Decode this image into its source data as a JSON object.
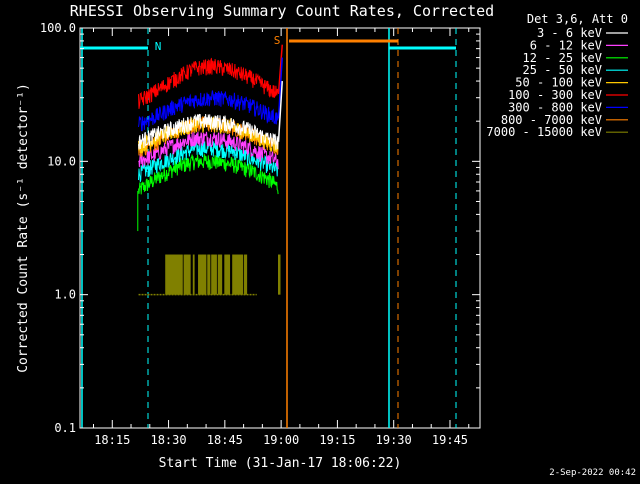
{
  "chart_data": {
    "type": "line",
    "title": "RHESSI Observing Summary Count Rates, Corrected",
    "xlabel": "Start Time (31-Jan-17 18:06:22)",
    "ylabel": "Corrected Count Rate (s⁻¹ detector⁻¹)",
    "yscale": "log",
    "ylim": [
      0.1,
      100.0
    ],
    "xlim_minutes_from_1800": [
      6.4,
      47.0
    ],
    "x_ticks": [
      "18:15",
      "18:30",
      "18:45",
      "19:00",
      "19:15",
      "19:30",
      "19:45"
    ],
    "x_tick_minutes": [
      15,
      30,
      45,
      60,
      75,
      90,
      105
    ],
    "y_ticks": [
      "0.1",
      "1.0",
      "10.0",
      "100.0"
    ],
    "y_tick_values": [
      0.1,
      1.0,
      10.0,
      100.0
    ],
    "legend_title": "Det 3,6, Att 0",
    "legend_placement": "top-right outside plot",
    "series": [
      {
        "name": "3 - 6 keV",
        "color": "#ffffff",
        "x_minutes": [
          22,
          27,
          32,
          37,
          42,
          47,
          52,
          56,
          59
        ],
        "values": [
          14,
          16,
          18,
          20,
          20,
          19,
          17,
          15,
          14
        ]
      },
      {
        "name": "6 - 12 keV",
        "color": "#ff40ff",
        "x_minutes": [
          22,
          27,
          32,
          37,
          42,
          47,
          52,
          56,
          59
        ],
        "values": [
          10,
          11.5,
          13.5,
          15,
          15,
          14,
          12.5,
          11,
          10
        ]
      },
      {
        "name": "12 - 25 keV",
        "color": "#00ff00",
        "x_minutes": [
          22,
          27,
          32,
          37,
          42,
          47,
          52,
          56,
          59
        ],
        "values": [
          6,
          7.5,
          9,
          10,
          10,
          9.5,
          8.5,
          7.5,
          6.5
        ]
      },
      {
        "name": "25 - 50 keV",
        "color": "#00ffff",
        "x_minutes": [
          22,
          27,
          32,
          37,
          42,
          47,
          52,
          56,
          59
        ],
        "values": [
          8,
          9.5,
          11,
          12.5,
          12.5,
          12,
          10.5,
          9.5,
          8.5
        ]
      },
      {
        "name": "50 - 100 keV",
        "color": "#ffc800",
        "x_minutes": [
          22,
          27,
          32,
          37,
          42,
          47,
          52,
          56,
          59
        ],
        "values": [
          13,
          15,
          17,
          19,
          19,
          18,
          16,
          14,
          13
        ]
      },
      {
        "name": "100 - 300 keV",
        "color": "#ff0000",
        "x_minutes": [
          22,
          27,
          32,
          37,
          42,
          47,
          52,
          56,
          59
        ],
        "values": [
          28,
          34,
          42,
          50,
          52,
          48,
          42,
          36,
          32
        ]
      },
      {
        "name": "300 - 800 keV",
        "color": "#0000ff",
        "x_minutes": [
          22,
          27,
          32,
          37,
          42,
          47,
          52,
          56,
          59
        ],
        "values": [
          19,
          22,
          26,
          29,
          30,
          29,
          26,
          23,
          21
        ]
      },
      {
        "name": "800 - 7000 keV",
        "color": "#ff8000",
        "x_minutes": [
          22,
          27,
          32,
          37,
          42,
          47,
          52,
          56,
          59
        ],
        "values": [
          12,
          14,
          17,
          19,
          19,
          18,
          16,
          14,
          13
        ]
      },
      {
        "name": "7000 - 15000 keV",
        "color": "#808000",
        "x_minutes": [
          22,
          27,
          32,
          37,
          42,
          47,
          52,
          56,
          59
        ],
        "values": [
          1.0,
          1.0,
          2.0,
          2.0,
          2.0,
          2.0,
          1.0,
          1.0,
          1.0
        ]
      }
    ],
    "annotations": [
      {
        "label": "N",
        "color": "#00ffff"
      },
      {
        "label": "S",
        "color": "#ff8000"
      }
    ]
  },
  "footer": {
    "timestamp": "2-Sep-2022 00:42"
  }
}
